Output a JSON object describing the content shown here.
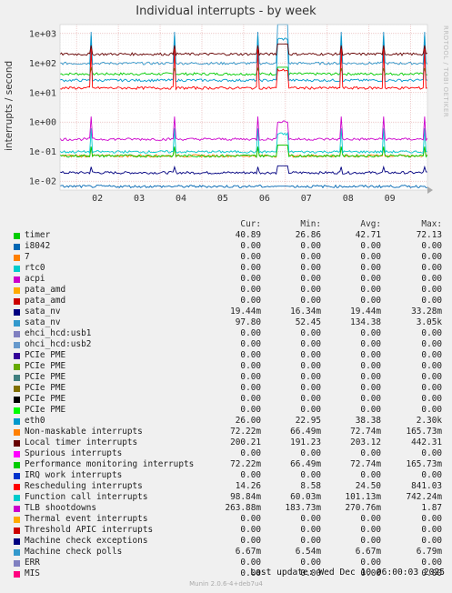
{
  "title": "Individual interrupts - by week",
  "side_credit": "RRDTOOL / TOBI OETIKER",
  "footer": "Munin 2.0.6-4+deb7u4",
  "last_update": "Last update:  Wed Dec 10 06:00:03 2025",
  "legend_headers": {
    "cur": "Cur:",
    "min": "Min:",
    "avg": "Avg:",
    "max": "Max:"
  },
  "chart_data": {
    "type": "line",
    "ylabel": "interrupts / second",
    "yscale": "log",
    "ylim": [
      0.005,
      2000
    ],
    "yticks": [
      "1e-02",
      "1e-01",
      "1e+00",
      "1e+01",
      "1e+02",
      "1e+03"
    ],
    "xticks": [
      "02",
      "03",
      "04",
      "05",
      "06",
      "07",
      "08",
      "09"
    ],
    "grid": true,
    "series": [
      {
        "name": "timer",
        "color": "#00cc00",
        "base": 42.71,
        "peak": 72.13
      },
      {
        "name": "sata_nv",
        "color": "#000080",
        "base": 0.01944,
        "peak": 0.03328
      },
      {
        "name": "sata_nv",
        "color": "#3399cc",
        "base": 97.8,
        "peak": 3050
      },
      {
        "name": "eth0",
        "color": "#0099cc",
        "base": 26.0,
        "peak": 2300
      },
      {
        "name": "Non-maskable interrupts",
        "color": "#ff8000",
        "base": 0.07222,
        "peak": 0.16573
      },
      {
        "name": "Local timer interrupts",
        "color": "#660000",
        "base": 200.21,
        "peak": 442.31
      },
      {
        "name": "Performance monitoring interrupts",
        "color": "#00cc00",
        "base": 0.07222,
        "peak": 0.16573
      },
      {
        "name": "Rescheduling interrupts",
        "color": "#ff0000",
        "base": 14.26,
        "peak": 841.03
      },
      {
        "name": "Function call interrupts",
        "color": "#00cccc",
        "base": 0.09884,
        "peak": 0.74224
      },
      {
        "name": "TLB shootdowns",
        "color": "#cc00cc",
        "base": 0.26388,
        "peak": 1.87
      },
      {
        "name": "Machine check polls",
        "color": "#0066b3",
        "base": 0.00667,
        "peak": 0.00679
      }
    ]
  },
  "legend": [
    {
      "name": "timer",
      "color": "#00cc00",
      "cur": "40.89",
      "min": "26.86",
      "avg": "42.71",
      "max": "72.13"
    },
    {
      "name": "i8042",
      "color": "#0066b3",
      "cur": "0.00",
      "min": "0.00",
      "avg": "0.00",
      "max": "0.00"
    },
    {
      "name": "7",
      "color": "#ff8000",
      "cur": "0.00",
      "min": "0.00",
      "avg": "0.00",
      "max": "0.00"
    },
    {
      "name": "rtc0",
      "color": "#00cccc",
      "cur": "0.00",
      "min": "0.00",
      "avg": "0.00",
      "max": "0.00"
    },
    {
      "name": "acpi",
      "color": "#cc00cc",
      "cur": "0.00",
      "min": "0.00",
      "avg": "0.00",
      "max": "0.00"
    },
    {
      "name": "pata_amd",
      "color": "#ffaa00",
      "cur": "0.00",
      "min": "0.00",
      "avg": "0.00",
      "max": "0.00"
    },
    {
      "name": "pata_amd",
      "color": "#cc0000",
      "cur": "0.00",
      "min": "0.00",
      "avg": "0.00",
      "max": "0.00"
    },
    {
      "name": "sata_nv",
      "color": "#000080",
      "cur": "19.44m",
      "min": "16.34m",
      "avg": "19.44m",
      "max": "33.28m"
    },
    {
      "name": "sata_nv",
      "color": "#3399cc",
      "cur": "97.80",
      "min": "52.45",
      "avg": "134.38",
      "max": "3.05k"
    },
    {
      "name": "ehci_hcd:usb1",
      "color": "#8080c0",
      "cur": "0.00",
      "min": "0.00",
      "avg": "0.00",
      "max": "0.00"
    },
    {
      "name": "ohci_hcd:usb2",
      "color": "#6699cc",
      "cur": "0.00",
      "min": "0.00",
      "avg": "0.00",
      "max": "0.00"
    },
    {
      "name": "PCIe PME",
      "color": "#330099",
      "cur": "0.00",
      "min": "0.00",
      "avg": "0.00",
      "max": "0.00"
    },
    {
      "name": "PCIe PME",
      "color": "#66aa00",
      "cur": "0.00",
      "min": "0.00",
      "avg": "0.00",
      "max": "0.00"
    },
    {
      "name": "PCIe PME",
      "color": "#408080",
      "cur": "0.00",
      "min": "0.00",
      "avg": "0.00",
      "max": "0.00"
    },
    {
      "name": "PCIe PME",
      "color": "#807000",
      "cur": "0.00",
      "min": "0.00",
      "avg": "0.00",
      "max": "0.00"
    },
    {
      "name": "PCIe PME",
      "color": "#000000",
      "cur": "0.00",
      "min": "0.00",
      "avg": "0.00",
      "max": "0.00"
    },
    {
      "name": "PCIe PME",
      "color": "#00ff00",
      "cur": "0.00",
      "min": "0.00",
      "avg": "0.00",
      "max": "0.00"
    },
    {
      "name": "eth0",
      "color": "#0099cc",
      "cur": "26.00",
      "min": "22.95",
      "avg": "38.38",
      "max": "2.30k"
    },
    {
      "name": "Non-maskable interrupts",
      "color": "#ff8000",
      "cur": "72.22m",
      "min": "66.49m",
      "avg": "72.74m",
      "max": "165.73m"
    },
    {
      "name": "Local timer interrupts",
      "color": "#660000",
      "cur": "200.21",
      "min": "191.23",
      "avg": "203.12",
      "max": "442.31"
    },
    {
      "name": "Spurious interrupts",
      "color": "#ff00ff",
      "cur": "0.00",
      "min": "0.00",
      "avg": "0.00",
      "max": "0.00"
    },
    {
      "name": "Performance monitoring interrupts",
      "color": "#00cc00",
      "cur": "72.22m",
      "min": "66.49m",
      "avg": "72.74m",
      "max": "165.73m"
    },
    {
      "name": "IRQ work interrupts",
      "color": "#0033cc",
      "cur": "0.00",
      "min": "0.00",
      "avg": "0.00",
      "max": "0.00"
    },
    {
      "name": "Rescheduling interrupts",
      "color": "#ff0000",
      "cur": "14.26",
      "min": "8.58",
      "avg": "24.50",
      "max": "841.03"
    },
    {
      "name": "Function call interrupts",
      "color": "#00cccc",
      "cur": "98.84m",
      "min": "60.03m",
      "avg": "101.13m",
      "max": "742.24m"
    },
    {
      "name": "TLB shootdowns",
      "color": "#cc00cc",
      "cur": "263.88m",
      "min": "183.73m",
      "avg": "270.76m",
      "max": "1.87"
    },
    {
      "name": "Thermal event interrupts",
      "color": "#ffaa00",
      "cur": "0.00",
      "min": "0.00",
      "avg": "0.00",
      "max": "0.00"
    },
    {
      "name": "Threshold APIC interrupts",
      "color": "#cc0000",
      "cur": "0.00",
      "min": "0.00",
      "avg": "0.00",
      "max": "0.00"
    },
    {
      "name": "Machine check exceptions",
      "color": "#000080",
      "cur": "0.00",
      "min": "0.00",
      "avg": "0.00",
      "max": "0.00"
    },
    {
      "name": "Machine check polls",
      "color": "#3399cc",
      "cur": "6.67m",
      "min": "6.54m",
      "avg": "6.67m",
      "max": "6.79m"
    },
    {
      "name": "ERR",
      "color": "#8080c0",
      "cur": "0.00",
      "min": "0.00",
      "avg": "0.00",
      "max": "0.00"
    },
    {
      "name": "MIS",
      "color": "#ff0080",
      "cur": "0.00",
      "min": "0.00",
      "avg": "0.00",
      "max": "0.00"
    }
  ]
}
